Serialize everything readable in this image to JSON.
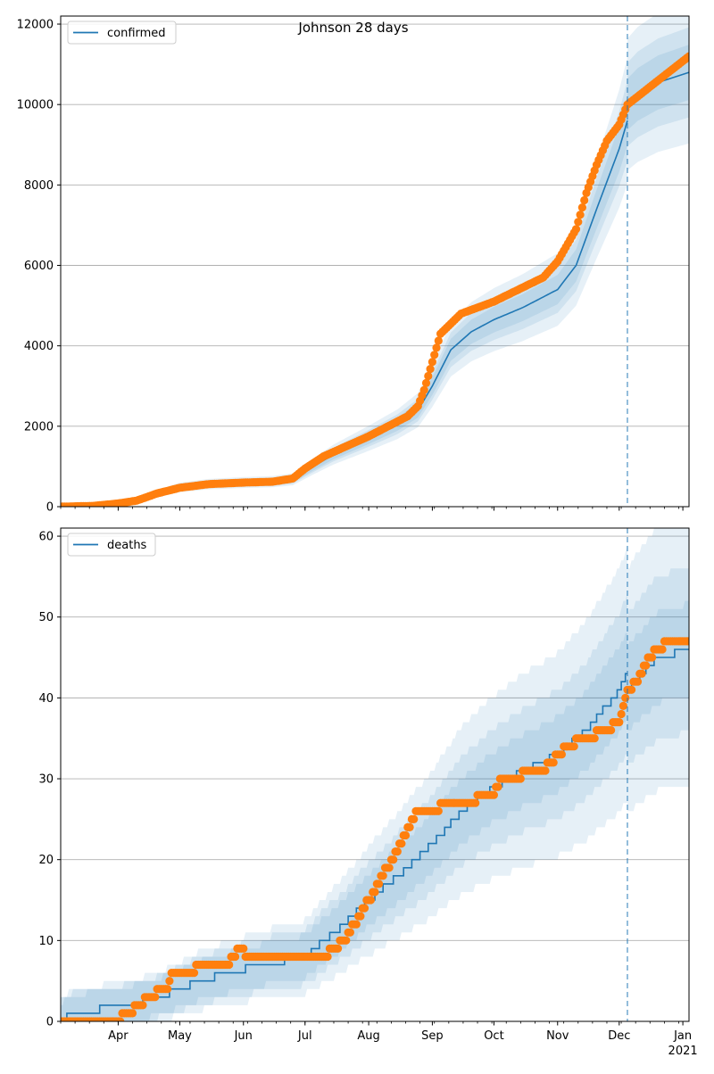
{
  "figure_title": "Johnson 28 days",
  "colors": {
    "model": "#1f77b4",
    "observed": "#ff7f0e",
    "band": "#1f77b4",
    "grid": "#b0b0b0",
    "forecast_line": "#1f77b4"
  },
  "chart_data": [
    {
      "type": "line",
      "legend": "confirmed",
      "legend_position": "top-left",
      "grid": "horizontal",
      "xlim": [
        "2020-03-04",
        "2021-01-04"
      ],
      "ylim": [
        0,
        12200
      ],
      "yticks": [
        0,
        2000,
        4000,
        6000,
        8000,
        10000,
        12000
      ],
      "forecast_start": "2020-12-05",
      "x_tick_labels": [
        {
          "date": "2020-04-01",
          "label": "Apr"
        },
        {
          "date": "2020-05-01",
          "label": "May"
        },
        {
          "date": "2020-06-01",
          "label": "Jun"
        },
        {
          "date": "2020-07-01",
          "label": "Jul"
        },
        {
          "date": "2020-08-01",
          "label": "Aug"
        },
        {
          "date": "2020-09-01",
          "label": "Sep"
        },
        {
          "date": "2020-10-01",
          "label": "Oct"
        },
        {
          "date": "2020-11-01",
          "label": "Nov"
        },
        {
          "date": "2020-12-01",
          "label": "Dec"
        },
        {
          "date": "2021-01-01",
          "label": "Jan",
          "sublabel": "2021"
        }
      ],
      "model_fit": [
        [
          "2020-03-04",
          0
        ],
        [
          "2020-03-20",
          20
        ],
        [
          "2020-04-01",
          70
        ],
        [
          "2020-04-10",
          150
        ],
        [
          "2020-04-20",
          320
        ],
        [
          "2020-05-01",
          480
        ],
        [
          "2020-05-15",
          560
        ],
        [
          "2020-06-01",
          600
        ],
        [
          "2020-06-15",
          620
        ],
        [
          "2020-06-25",
          680
        ],
        [
          "2020-07-05",
          1000
        ],
        [
          "2020-07-15",
          1300
        ],
        [
          "2020-08-01",
          1700
        ],
        [
          "2020-08-15",
          2050
        ],
        [
          "2020-08-25",
          2400
        ],
        [
          "2020-09-01",
          3000
        ],
        [
          "2020-09-10",
          3900
        ],
        [
          "2020-09-20",
          4350
        ],
        [
          "2020-10-01",
          4650
        ],
        [
          "2020-10-15",
          4950
        ],
        [
          "2020-11-01",
          5400
        ],
        [
          "2020-11-10",
          6000
        ],
        [
          "2020-11-20",
          7400
        ],
        [
          "2020-12-01",
          8900
        ],
        [
          "2020-12-05",
          9600
        ]
      ],
      "forecast": [
        [
          "2020-12-05",
          10000
        ],
        [
          "2020-12-10",
          10250
        ],
        [
          "2020-12-20",
          10550
        ],
        [
          "2021-01-04",
          10800
        ]
      ],
      "band_spreads": [
        0.06,
        0.1,
        0.16
      ],
      "observed": [
        [
          "2020-03-04",
          0
        ],
        [
          "2020-03-20",
          20
        ],
        [
          "2020-04-01",
          80
        ],
        [
          "2020-04-10",
          150
        ],
        [
          "2020-04-20",
          330
        ],
        [
          "2020-05-01",
          470
        ],
        [
          "2020-05-15",
          560
        ],
        [
          "2020-06-01",
          600
        ],
        [
          "2020-06-15",
          620
        ],
        [
          "2020-06-25",
          700
        ],
        [
          "2020-07-01",
          950
        ],
        [
          "2020-07-10",
          1250
        ],
        [
          "2020-08-01",
          1750
        ],
        [
          "2020-08-20",
          2250
        ],
        [
          "2020-08-25",
          2500
        ],
        [
          "2020-08-28",
          2900
        ],
        [
          "2020-09-01",
          3600
        ],
        [
          "2020-09-05",
          4300
        ],
        [
          "2020-09-15",
          4800
        ],
        [
          "2020-10-01",
          5100
        ],
        [
          "2020-10-15",
          5450
        ],
        [
          "2020-10-25",
          5700
        ],
        [
          "2020-11-01",
          6100
        ],
        [
          "2020-11-10",
          6900
        ],
        [
          "2020-11-15",
          7800
        ],
        [
          "2020-11-20",
          8500
        ],
        [
          "2020-11-25",
          9100
        ],
        [
          "2020-12-01",
          9500
        ],
        [
          "2020-12-05",
          10000
        ],
        [
          "2020-12-15",
          10400
        ],
        [
          "2020-12-25",
          10800
        ],
        [
          "2021-01-04",
          11200
        ]
      ]
    },
    {
      "type": "line",
      "legend": "deaths",
      "legend_position": "top-left",
      "grid": "horizontal",
      "xlim": [
        "2020-03-04",
        "2021-01-04"
      ],
      "ylim": [
        0,
        61
      ],
      "yticks": [
        0,
        10,
        20,
        30,
        40,
        50,
        60
      ],
      "forecast_start": "2020-12-05",
      "x_tick_labels": [
        {
          "date": "2020-04-01",
          "label": "Apr"
        },
        {
          "date": "2020-05-01",
          "label": "May"
        },
        {
          "date": "2020-06-01",
          "label": "Jun"
        },
        {
          "date": "2020-07-01",
          "label": "Jul"
        },
        {
          "date": "2020-08-01",
          "label": "Aug"
        },
        {
          "date": "2020-09-01",
          "label": "Sep"
        },
        {
          "date": "2020-10-01",
          "label": "Oct"
        },
        {
          "date": "2020-11-01",
          "label": "Nov"
        },
        {
          "date": "2020-12-01",
          "label": "Dec"
        },
        {
          "date": "2021-01-01",
          "label": "Jan",
          "sublabel": "2021"
        }
      ],
      "model_fit": [
        [
          "2020-03-04",
          0
        ],
        [
          "2020-03-10",
          1
        ],
        [
          "2020-04-05",
          2
        ],
        [
          "2020-04-20",
          3
        ],
        [
          "2020-05-01",
          4
        ],
        [
          "2020-05-10",
          5
        ],
        [
          "2020-05-25",
          6
        ],
        [
          "2020-06-10",
          7
        ],
        [
          "2020-07-01",
          8
        ],
        [
          "2020-07-10",
          10
        ],
        [
          "2020-07-20",
          12
        ],
        [
          "2020-08-01",
          15
        ],
        [
          "2020-08-15",
          18
        ],
        [
          "2020-09-01",
          22
        ],
        [
          "2020-09-15",
          26
        ],
        [
          "2020-10-01",
          29
        ],
        [
          "2020-10-15",
          31
        ],
        [
          "2020-11-01",
          33
        ],
        [
          "2020-11-15",
          36
        ],
        [
          "2020-12-01",
          41
        ],
        [
          "2020-12-05",
          43
        ]
      ],
      "forecast": [
        [
          "2020-12-05",
          41
        ],
        [
          "2020-12-12",
          43
        ],
        [
          "2020-12-20",
          45
        ],
        [
          "2021-01-04",
          46
        ]
      ],
      "band_spreads": [
        0.08,
        0.18,
        0.32
      ],
      "observed": [
        [
          "2020-03-04",
          0
        ],
        [
          "2020-04-01",
          0
        ],
        [
          "2020-04-05",
          1
        ],
        [
          "2020-04-12",
          2
        ],
        [
          "2020-04-15",
          3
        ],
        [
          "2020-04-25",
          4
        ],
        [
          "2020-04-27",
          6
        ],
        [
          "2020-05-08",
          6
        ],
        [
          "2020-05-10",
          7
        ],
        [
          "2020-05-25",
          7
        ],
        [
          "2020-05-27",
          8
        ],
        [
          "2020-05-30",
          9
        ],
        [
          "2020-06-03",
          8
        ],
        [
          "2020-07-10",
          8
        ],
        [
          "2020-07-15",
          9
        ],
        [
          "2020-07-20",
          10
        ],
        [
          "2020-07-25",
          12
        ],
        [
          "2020-08-01",
          15
        ],
        [
          "2020-08-10",
          19
        ],
        [
          "2020-08-15",
          21
        ],
        [
          "2020-08-20",
          24
        ],
        [
          "2020-08-25",
          26
        ],
        [
          "2020-09-15",
          27
        ],
        [
          "2020-10-01",
          28
        ],
        [
          "2020-10-05",
          30
        ],
        [
          "2020-10-25",
          31
        ],
        [
          "2020-11-05",
          34
        ],
        [
          "2020-11-15",
          35
        ],
        [
          "2020-11-25",
          36
        ],
        [
          "2020-12-01",
          37
        ],
        [
          "2020-12-05",
          41
        ],
        [
          "2020-12-10",
          42
        ],
        [
          "2020-12-15",
          45
        ],
        [
          "2020-12-25",
          47
        ],
        [
          "2021-01-04",
          47
        ]
      ]
    }
  ]
}
